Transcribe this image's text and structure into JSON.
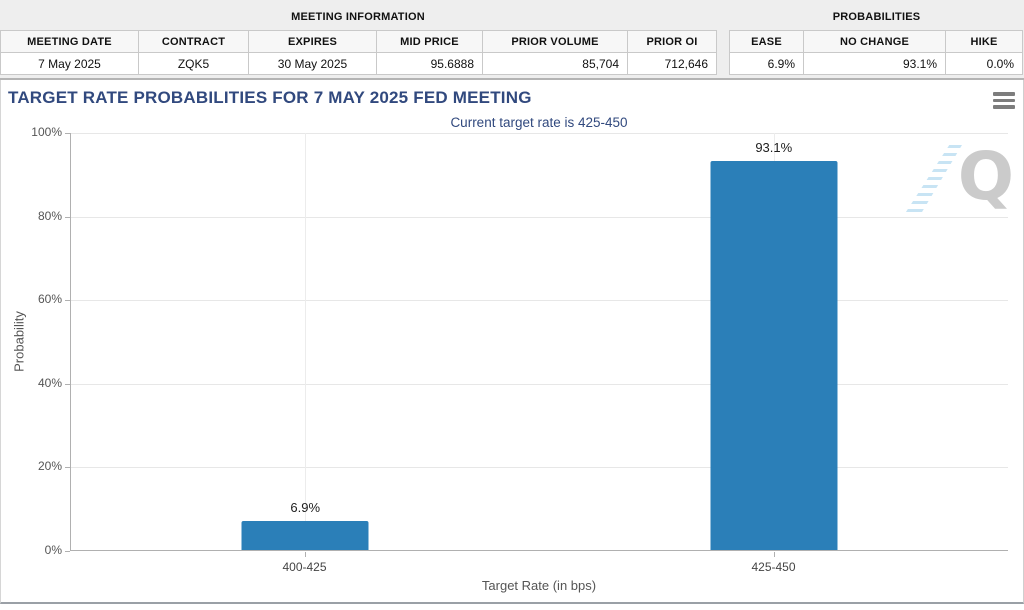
{
  "meeting_info": {
    "title": "MEETING INFORMATION",
    "columns": [
      "MEETING DATE",
      "CONTRACT",
      "EXPIRES",
      "MID PRICE",
      "PRIOR VOLUME",
      "PRIOR OI"
    ],
    "row": [
      "7 May 2025",
      "ZQK5",
      "30 May 2025",
      "95.6888",
      "85,704",
      "712,646"
    ]
  },
  "probabilities_table": {
    "title": "PROBABILITIES",
    "columns": [
      "EASE",
      "NO CHANGE",
      "HIKE"
    ],
    "row": [
      "6.9%",
      "93.1%",
      "0.0%"
    ]
  },
  "chart_header": {
    "title": "TARGET RATE PROBABILITIES FOR 7 MAY 2025 FED MEETING",
    "subtitle": "Current target rate is 425-450",
    "menu_icon": "hamburger-menu-icon",
    "watermark_letter": "Q"
  },
  "chart_data": {
    "type": "bar",
    "title": "TARGET RATE PROBABILITIES FOR 7 MAY 2025 FED MEETING",
    "subtitle": "Current target rate is 425-450",
    "categories": [
      "400-425",
      "425-450"
    ],
    "values": [
      6.9,
      93.1
    ],
    "bar_labels": [
      "6.9%",
      "93.1%"
    ],
    "xlabel": "Target Rate (in bps)",
    "ylabel": "Probability",
    "ylim": [
      0,
      100
    ],
    "ytick_labels": [
      "0%",
      "20%",
      "40%",
      "60%",
      "80%",
      "100%"
    ],
    "ytick_values": [
      0,
      20,
      40,
      60,
      80,
      100
    ],
    "grid": true,
    "legend_position": "none",
    "bar_color": "#2b7fb8"
  },
  "colors": {
    "accent_navy": "#31497e",
    "bar_blue": "#2b7fb8",
    "band_bg": "#eeeeee",
    "grid_line": "#e7e7e7",
    "axis_line": "#b0b0b0"
  }
}
